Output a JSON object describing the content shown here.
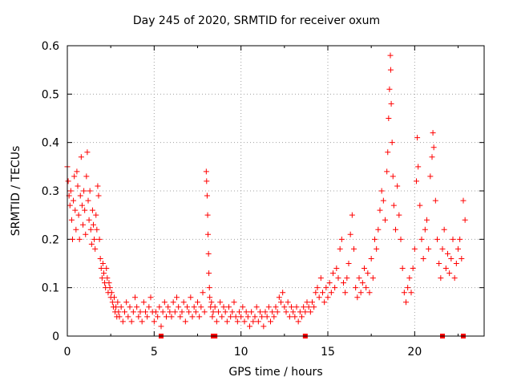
{
  "chart_data": {
    "type": "scatter",
    "title": "Day 245 of 2020, SRMTID for receiver oxum",
    "xlabel": "GPS time / hours",
    "ylabel": "SRMTID / TECUs",
    "xlim": [
      0,
      24
    ],
    "ylim": [
      0,
      0.6
    ],
    "xticks": [
      "0",
      "5",
      "10",
      "15",
      "20"
    ],
    "yticks": [
      "0",
      "0.1",
      "0.2",
      "0.3",
      "0.4",
      "0.5",
      "0.6"
    ],
    "grid": true,
    "marker": "+",
    "color": "#ff0000",
    "series": [
      {
        "name": "SRMTID",
        "points": [
          [
            0.0,
            0.35
          ],
          [
            0.05,
            0.32
          ],
          [
            0.1,
            0.29
          ],
          [
            0.15,
            0.27
          ],
          [
            0.2,
            0.3
          ],
          [
            0.25,
            0.24
          ],
          [
            0.3,
            0.2
          ],
          [
            0.35,
            0.28
          ],
          [
            0.4,
            0.33
          ],
          [
            0.45,
            0.26
          ],
          [
            0.5,
            0.22
          ],
          [
            0.55,
            0.34
          ],
          [
            0.6,
            0.31
          ],
          [
            0.65,
            0.25
          ],
          [
            0.7,
            0.2
          ],
          [
            0.75,
            0.29
          ],
          [
            0.8,
            0.37
          ],
          [
            0.85,
            0.27
          ],
          [
            0.9,
            0.23
          ],
          [
            0.95,
            0.3
          ],
          [
            1.0,
            0.26
          ],
          [
            1.05,
            0.21
          ],
          [
            1.1,
            0.33
          ],
          [
            1.15,
            0.38
          ],
          [
            1.2,
            0.28
          ],
          [
            1.25,
            0.24
          ],
          [
            1.3,
            0.3
          ],
          [
            1.35,
            0.22
          ],
          [
            1.4,
            0.19
          ],
          [
            1.45,
            0.26
          ],
          [
            1.5,
            0.23
          ],
          [
            1.55,
            0.2
          ],
          [
            1.6,
            0.18
          ],
          [
            1.65,
            0.25
          ],
          [
            1.7,
            0.22
          ],
          [
            1.75,
            0.31
          ],
          [
            1.8,
            0.29
          ],
          [
            1.85,
            0.2
          ],
          [
            1.9,
            0.16
          ],
          [
            1.95,
            0.14
          ],
          [
            2.0,
            0.12
          ],
          [
            2.05,
            0.15
          ],
          [
            2.1,
            0.13
          ],
          [
            2.15,
            0.11
          ],
          [
            2.2,
            0.1
          ],
          [
            2.25,
            0.14
          ],
          [
            2.3,
            0.12
          ],
          [
            2.35,
            0.09
          ],
          [
            2.4,
            0.11
          ],
          [
            2.45,
            0.1
          ],
          [
            2.5,
            0.08
          ],
          [
            2.55,
            0.09
          ],
          [
            2.6,
            0.07
          ],
          [
            2.65,
            0.06
          ],
          [
            2.7,
            0.08
          ],
          [
            2.75,
            0.05
          ],
          [
            2.8,
            0.06
          ],
          [
            2.85,
            0.04
          ],
          [
            2.9,
            0.07
          ],
          [
            2.95,
            0.05
          ],
          [
            3.0,
            0.04
          ],
          [
            3.1,
            0.06
          ],
          [
            3.2,
            0.03
          ],
          [
            3.3,
            0.05
          ],
          [
            3.4,
            0.07
          ],
          [
            3.5,
            0.04
          ],
          [
            3.6,
            0.06
          ],
          [
            3.7,
            0.03
          ],
          [
            3.8,
            0.05
          ],
          [
            3.9,
            0.08
          ],
          [
            4.0,
            0.06
          ],
          [
            4.1,
            0.04
          ],
          [
            4.2,
            0.05
          ],
          [
            4.3,
            0.03
          ],
          [
            4.4,
            0.07
          ],
          [
            4.5,
            0.05
          ],
          [
            4.6,
            0.04
          ],
          [
            4.7,
            0.06
          ],
          [
            4.8,
            0.08
          ],
          [
            4.9,
            0.05
          ],
          [
            5.0,
            0.03
          ],
          [
            5.1,
            0.05
          ],
          [
            5.2,
            0.04
          ],
          [
            5.3,
            0.06
          ],
          [
            5.4,
            0.02
          ],
          [
            5.5,
            0.05
          ],
          [
            5.6,
            0.07
          ],
          [
            5.7,
            0.04
          ],
          [
            5.8,
            0.06
          ],
          [
            5.9,
            0.05
          ],
          [
            6.0,
            0.04
          ],
          [
            6.1,
            0.07
          ],
          [
            6.2,
            0.05
          ],
          [
            6.3,
            0.08
          ],
          [
            6.4,
            0.06
          ],
          [
            6.5,
            0.04
          ],
          [
            6.6,
            0.05
          ],
          [
            6.7,
            0.07
          ],
          [
            6.8,
            0.03
          ],
          [
            6.9,
            0.06
          ],
          [
            7.0,
            0.05
          ],
          [
            7.1,
            0.08
          ],
          [
            7.2,
            0.04
          ],
          [
            7.3,
            0.06
          ],
          [
            7.4,
            0.05
          ],
          [
            7.5,
            0.07
          ],
          [
            7.6,
            0.04
          ],
          [
            7.7,
            0.06
          ],
          [
            7.8,
            0.09
          ],
          [
            7.9,
            0.05
          ],
          [
            8.0,
            0.34
          ],
          [
            8.02,
            0.32
          ],
          [
            8.05,
            0.29
          ],
          [
            8.08,
            0.25
          ],
          [
            8.1,
            0.21
          ],
          [
            8.13,
            0.17
          ],
          [
            8.15,
            0.13
          ],
          [
            8.18,
            0.1
          ],
          [
            8.2,
            0.08
          ],
          [
            8.25,
            0.06
          ],
          [
            8.3,
            0.07
          ],
          [
            8.35,
            0.04
          ],
          [
            8.4,
            0.05
          ],
          [
            8.5,
            0.06
          ],
          [
            8.6,
            0.03
          ],
          [
            8.7,
            0.05
          ],
          [
            8.8,
            0.07
          ],
          [
            8.9,
            0.04
          ],
          [
            9.0,
            0.06
          ],
          [
            9.1,
            0.05
          ],
          [
            9.2,
            0.03
          ],
          [
            9.3,
            0.06
          ],
          [
            9.4,
            0.04
          ],
          [
            9.5,
            0.05
          ],
          [
            9.6,
            0.07
          ],
          [
            9.7,
            0.04
          ],
          [
            9.8,
            0.03
          ],
          [
            9.9,
            0.05
          ],
          [
            10.0,
            0.04
          ],
          [
            10.1,
            0.06
          ],
          [
            10.2,
            0.03
          ],
          [
            10.3,
            0.05
          ],
          [
            10.4,
            0.04
          ],
          [
            10.5,
            0.02
          ],
          [
            10.6,
            0.05
          ],
          [
            10.7,
            0.03
          ],
          [
            10.8,
            0.04
          ],
          [
            10.9,
            0.06
          ],
          [
            11.0,
            0.03
          ],
          [
            11.1,
            0.05
          ],
          [
            11.2,
            0.04
          ],
          [
            11.3,
            0.02
          ],
          [
            11.4,
            0.05
          ],
          [
            11.5,
            0.04
          ],
          [
            11.6,
            0.06
          ],
          [
            11.7,
            0.03
          ],
          [
            11.8,
            0.05
          ],
          [
            11.9,
            0.04
          ],
          [
            12.0,
            0.06
          ],
          [
            12.1,
            0.05
          ],
          [
            12.2,
            0.08
          ],
          [
            12.3,
            0.07
          ],
          [
            12.4,
            0.09
          ],
          [
            12.5,
            0.06
          ],
          [
            12.6,
            0.05
          ],
          [
            12.7,
            0.07
          ],
          [
            12.8,
            0.04
          ],
          [
            12.9,
            0.06
          ],
          [
            13.0,
            0.05
          ],
          [
            13.1,
            0.04
          ],
          [
            13.2,
            0.06
          ],
          [
            13.3,
            0.03
          ],
          [
            13.4,
            0.05
          ],
          [
            13.5,
            0.04
          ],
          [
            13.6,
            0.06
          ],
          [
            13.7,
            0.05
          ],
          [
            13.8,
            0.07
          ],
          [
            13.9,
            0.06
          ],
          [
            14.0,
            0.05
          ],
          [
            14.1,
            0.07
          ],
          [
            14.2,
            0.06
          ],
          [
            14.3,
            0.09
          ],
          [
            14.4,
            0.1
          ],
          [
            14.5,
            0.08
          ],
          [
            14.6,
            0.12
          ],
          [
            14.7,
            0.09
          ],
          [
            14.8,
            0.07
          ],
          [
            14.9,
            0.1
          ],
          [
            15.0,
            0.08
          ],
          [
            15.1,
            0.11
          ],
          [
            15.2,
            0.09
          ],
          [
            15.3,
            0.13
          ],
          [
            15.4,
            0.1
          ],
          [
            15.5,
            0.14
          ],
          [
            15.6,
            0.12
          ],
          [
            15.7,
            0.18
          ],
          [
            15.8,
            0.2
          ],
          [
            15.9,
            0.11
          ],
          [
            16.0,
            0.09
          ],
          [
            16.1,
            0.12
          ],
          [
            16.2,
            0.15
          ],
          [
            16.3,
            0.21
          ],
          [
            16.4,
            0.25
          ],
          [
            16.5,
            0.18
          ],
          [
            16.6,
            0.1
          ],
          [
            16.7,
            0.08
          ],
          [
            16.8,
            0.12
          ],
          [
            16.9,
            0.09
          ],
          [
            17.0,
            0.11
          ],
          [
            17.1,
            0.14
          ],
          [
            17.2,
            0.1
          ],
          [
            17.3,
            0.13
          ],
          [
            17.4,
            0.09
          ],
          [
            17.5,
            0.16
          ],
          [
            17.6,
            0.12
          ],
          [
            17.7,
            0.2
          ],
          [
            17.8,
            0.18
          ],
          [
            17.9,
            0.22
          ],
          [
            18.0,
            0.26
          ],
          [
            18.1,
            0.3
          ],
          [
            18.2,
            0.28
          ],
          [
            18.3,
            0.24
          ],
          [
            18.4,
            0.34
          ],
          [
            18.45,
            0.38
          ],
          [
            18.5,
            0.45
          ],
          [
            18.55,
            0.51
          ],
          [
            18.6,
            0.58
          ],
          [
            18.62,
            0.55
          ],
          [
            18.65,
            0.48
          ],
          [
            18.7,
            0.4
          ],
          [
            18.75,
            0.33
          ],
          [
            18.8,
            0.27
          ],
          [
            18.9,
            0.22
          ],
          [
            19.0,
            0.31
          ],
          [
            19.1,
            0.25
          ],
          [
            19.2,
            0.2
          ],
          [
            19.3,
            0.14
          ],
          [
            19.4,
            0.09
          ],
          [
            19.5,
            0.07
          ],
          [
            19.6,
            0.1
          ],
          [
            19.7,
            0.12
          ],
          [
            19.8,
            0.09
          ],
          [
            19.9,
            0.14
          ],
          [
            20.0,
            0.18
          ],
          [
            20.1,
            0.32
          ],
          [
            20.15,
            0.41
          ],
          [
            20.2,
            0.35
          ],
          [
            20.3,
            0.27
          ],
          [
            20.4,
            0.2
          ],
          [
            20.5,
            0.16
          ],
          [
            20.6,
            0.22
          ],
          [
            20.7,
            0.24
          ],
          [
            20.8,
            0.18
          ],
          [
            20.9,
            0.33
          ],
          [
            21.0,
            0.37
          ],
          [
            21.05,
            0.42
          ],
          [
            21.1,
            0.39
          ],
          [
            21.2,
            0.28
          ],
          [
            21.3,
            0.2
          ],
          [
            21.4,
            0.15
          ],
          [
            21.5,
            0.12
          ],
          [
            21.6,
            0.18
          ],
          [
            21.7,
            0.22
          ],
          [
            21.8,
            0.14
          ],
          [
            21.9,
            0.17
          ],
          [
            22.0,
            0.13
          ],
          [
            22.1,
            0.16
          ],
          [
            22.2,
            0.2
          ],
          [
            22.3,
            0.12
          ],
          [
            22.4,
            0.15
          ],
          [
            22.5,
            0.18
          ],
          [
            22.6,
            0.2
          ],
          [
            22.7,
            0.16
          ],
          [
            22.8,
            0.28
          ],
          [
            22.9,
            0.24
          ]
        ]
      }
    ],
    "gaps_x": [
      5.4,
      8.4,
      8.5,
      13.7,
      21.6,
      22.8
    ]
  }
}
